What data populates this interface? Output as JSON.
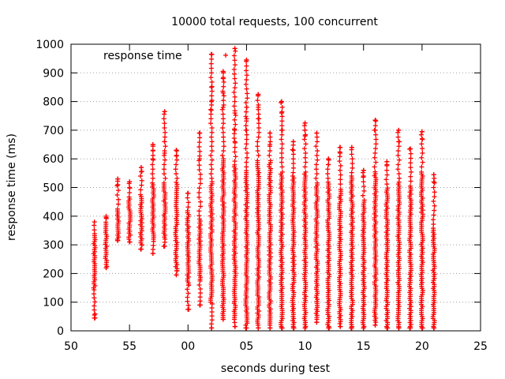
{
  "chart_data": {
    "type": "scatter",
    "title": "10000 total requests, 100 concurrent",
    "xlabel": "seconds during test",
    "ylabel": "response time (ms)",
    "xlim": [
      50,
      85
    ],
    "ylim": [
      0,
      1000
    ],
    "x_ticks": [
      50,
      55,
      60,
      65,
      70,
      75,
      80,
      85
    ],
    "x_tick_labels": [
      "50",
      "55",
      "00",
      "05",
      "10",
      "15",
      "20",
      "25"
    ],
    "y_ticks": [
      0,
      100,
      200,
      300,
      400,
      500,
      600,
      700,
      800,
      900,
      1000
    ],
    "y_tick_labels": [
      "0",
      "100",
      "200",
      "300",
      "400",
      "500",
      "600",
      "700",
      "800",
      "900",
      "1000"
    ],
    "grid": true,
    "legend_position": "top-left",
    "marker": "plus",
    "color": "#ff0000",
    "series": [
      {
        "name": "response time",
        "columns": [
          {
            "x": 52,
            "min": 45,
            "max": 380,
            "dense_min": 150,
            "dense_max": 340,
            "outliers": [
              45,
              55
            ]
          },
          {
            "x": 53,
            "min": 220,
            "max": 400,
            "dense_min": 225,
            "dense_max": 380,
            "outliers": [
              395
            ]
          },
          {
            "x": 54,
            "min": 315,
            "max": 530,
            "dense_min": 320,
            "dense_max": 430,
            "outliers": [
              510,
              530
            ]
          },
          {
            "x": 55,
            "min": 310,
            "max": 520,
            "dense_min": 320,
            "dense_max": 470,
            "outliers": [
              500,
              520
            ]
          },
          {
            "x": 56,
            "min": 285,
            "max": 570,
            "dense_min": 300,
            "dense_max": 480,
            "outliers": [
              555,
              570
            ]
          },
          {
            "x": 57,
            "min": 270,
            "max": 650,
            "dense_min": 320,
            "dense_max": 520,
            "outliers": [
              600,
              630,
              650
            ]
          },
          {
            "x": 58,
            "min": 295,
            "max": 765,
            "dense_min": 320,
            "dense_max": 520,
            "outliers": [
              620,
              660,
              765
            ]
          },
          {
            "x": 59,
            "min": 195,
            "max": 630,
            "dense_min": 210,
            "dense_max": 520,
            "outliers": [
              610,
              630
            ]
          },
          {
            "x": 60,
            "min": 75,
            "max": 480,
            "dense_min": 160,
            "dense_max": 420,
            "outliers": [
              75,
              480
            ]
          },
          {
            "x": 61,
            "min": 90,
            "max": 690,
            "dense_min": 180,
            "dense_max": 390,
            "outliers": [
              600,
              690
            ]
          },
          {
            "x": 62,
            "min": 10,
            "max": 965,
            "dense_min": 100,
            "dense_max": 520,
            "outliers": [
              770,
              800,
              850,
              965
            ]
          },
          {
            "x": 63,
            "min": 40,
            "max": 905,
            "dense_min": 40,
            "dense_max": 600,
            "outliers": [
              780,
              830,
              880,
              905
            ]
          },
          {
            "x": 64,
            "min": 15,
            "max": 985,
            "dense_min": 40,
            "dense_max": 580,
            "outliers": [
              660,
              700,
              760,
              985
            ]
          },
          {
            "x": 65,
            "min": 10,
            "max": 945,
            "dense_min": 20,
            "dense_max": 560,
            "outliers": [
              700,
              740,
              780,
              945
            ]
          },
          {
            "x": 66,
            "min": 10,
            "max": 825,
            "dense_min": 20,
            "dense_max": 600,
            "outliers": [
              740,
              780,
              825
            ]
          },
          {
            "x": 67,
            "min": 10,
            "max": 690,
            "dense_min": 20,
            "dense_max": 600,
            "outliers": [
              650,
              690
            ]
          },
          {
            "x": 68,
            "min": 10,
            "max": 800,
            "dense_min": 15,
            "dense_max": 560,
            "outliers": [
              700,
              760,
              800
            ]
          },
          {
            "x": 69,
            "min": 10,
            "max": 660,
            "dense_min": 15,
            "dense_max": 540,
            "outliers": [
              630,
              660
            ]
          },
          {
            "x": 70,
            "min": 10,
            "max": 725,
            "dense_min": 15,
            "dense_max": 560,
            "outliers": [
              680,
              700,
              725
            ]
          },
          {
            "x": 71,
            "min": 30,
            "max": 690,
            "dense_min": 40,
            "dense_max": 520,
            "outliers": [
              690
            ]
          },
          {
            "x": 72,
            "min": 10,
            "max": 600,
            "dense_min": 15,
            "dense_max": 520,
            "outliers": [
              580,
              600
            ]
          },
          {
            "x": 73,
            "min": 15,
            "max": 640,
            "dense_min": 25,
            "dense_max": 500,
            "outliers": [
              620,
              640
            ]
          },
          {
            "x": 74,
            "min": 10,
            "max": 640,
            "dense_min": 15,
            "dense_max": 540,
            "outliers": [
              640
            ]
          },
          {
            "x": 75,
            "min": 10,
            "max": 560,
            "dense_min": 15,
            "dense_max": 460,
            "outliers": [
              540,
              560
            ]
          },
          {
            "x": 76,
            "min": 20,
            "max": 735,
            "dense_min": 30,
            "dense_max": 560,
            "outliers": [
              700,
              735
            ]
          },
          {
            "x": 77,
            "min": 10,
            "max": 590,
            "dense_min": 15,
            "dense_max": 500,
            "outliers": [
              580,
              590
            ]
          },
          {
            "x": 78,
            "min": 10,
            "max": 700,
            "dense_min": 15,
            "dense_max": 520,
            "outliers": [
              660,
              700
            ]
          },
          {
            "x": 79,
            "min": 10,
            "max": 635,
            "dense_min": 15,
            "dense_max": 510,
            "outliers": [
              635
            ]
          },
          {
            "x": 80,
            "min": 10,
            "max": 695,
            "dense_min": 15,
            "dense_max": 560,
            "outliers": [
              670,
              695
            ]
          },
          {
            "x": 81,
            "min": 10,
            "max": 545,
            "dense_min": 15,
            "dense_max": 360,
            "outliers": [
              520,
              545
            ]
          }
        ]
      }
    ]
  }
}
